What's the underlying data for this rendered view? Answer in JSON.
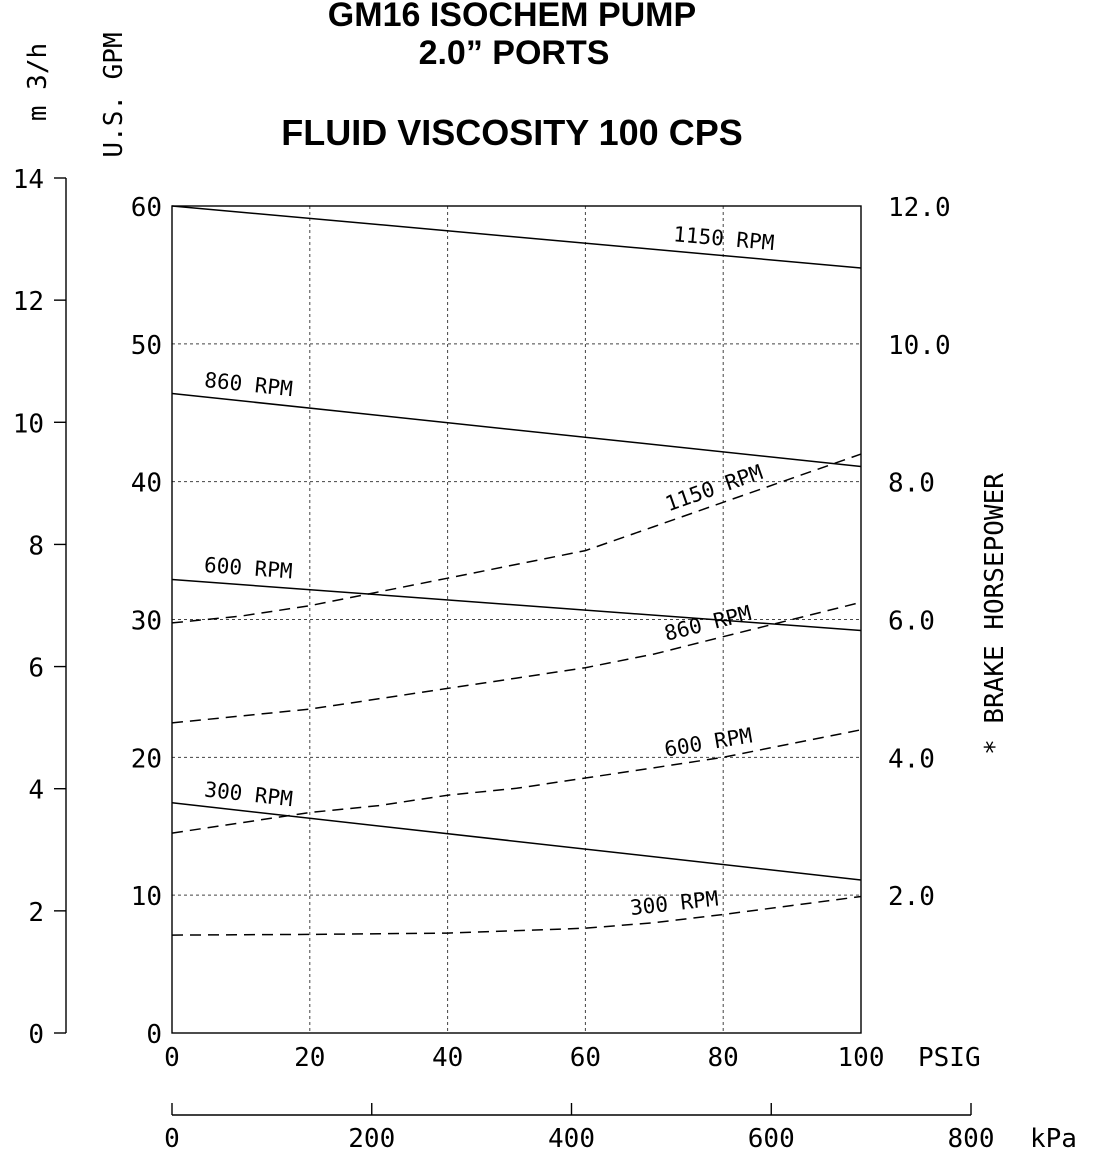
{
  "chart_data": {
    "type": "line",
    "title_lines": [
      "GM16 ISOCHEM PUMP",
      "2.0” PORTS"
    ],
    "subtitle": "FLUID VISCOSITY 100 CPS",
    "x_axis": {
      "unit": "PSIG",
      "range": [
        0,
        100
      ],
      "ticks": [
        0,
        20,
        40,
        60,
        80,
        100
      ],
      "tick_labels": [
        "0",
        "20",
        "40",
        "60",
        "80",
        "100"
      ]
    },
    "x2_axis": {
      "unit": "kPa",
      "range": [
        0,
        800
      ],
      "ticks": [
        0,
        200,
        400,
        600,
        800
      ],
      "tick_labels": [
        "0",
        "200",
        "400",
        "600",
        "800"
      ]
    },
    "y_axis": {
      "label": "U.S. GPM",
      "range": [
        0,
        60
      ],
      "ticks": [
        0,
        10,
        20,
        30,
        40,
        50,
        60
      ],
      "tick_labels": [
        "0",
        "10",
        "20",
        "30",
        "40",
        "50",
        "60"
      ]
    },
    "y_metric_axis": {
      "label": "m 3/h",
      "range": [
        0,
        14
      ],
      "ticks": [
        0,
        2,
        4,
        6,
        8,
        10,
        12,
        14
      ],
      "tick_labels": [
        "0",
        "2",
        "4",
        "6",
        "8",
        "10",
        "12",
        "14"
      ]
    },
    "y2_axis": {
      "label": "* BRAKE HORSEPOWER",
      "range": [
        0,
        12
      ],
      "ticks": [
        2,
        4,
        6,
        8,
        10,
        12
      ],
      "tick_labels": [
        "2.0",
        "4.0",
        "6.0",
        "8.0",
        "10.0",
        "12.0"
      ]
    },
    "grid": true,
    "flow_series": [
      {
        "name": "1150 RPM",
        "axis": "gpm",
        "x": [
          0,
          100
        ],
        "y": [
          60,
          55.5
        ]
      },
      {
        "name": "860 RPM",
        "axis": "gpm",
        "x": [
          0,
          100
        ],
        "y": [
          46.4,
          41.1
        ]
      },
      {
        "name": "600 RPM",
        "axis": "gpm",
        "x": [
          0,
          100
        ],
        "y": [
          32.9,
          29.2
        ]
      },
      {
        "name": "300 RPM",
        "axis": "gpm",
        "x": [
          0,
          100
        ],
        "y": [
          16.7,
          11.1
        ]
      }
    ],
    "horsepower_series": [
      {
        "name": "1150 RPM",
        "axis": "bhp",
        "x": [
          0,
          10,
          20,
          30,
          40,
          50,
          60,
          70,
          80,
          90,
          100
        ],
        "y": [
          5.95,
          6.05,
          6.2,
          6.4,
          6.6,
          6.8,
          7.0,
          7.35,
          7.7,
          8.05,
          8.4
        ]
      },
      {
        "name": "860 RPM",
        "axis": "bhp",
        "x": [
          0,
          10,
          20,
          30,
          40,
          50,
          60,
          70,
          80,
          90,
          100
        ],
        "y": [
          4.5,
          4.6,
          4.7,
          4.85,
          5.0,
          5.15,
          5.3,
          5.5,
          5.75,
          6.0,
          6.25
        ]
      },
      {
        "name": "600 RPM",
        "axis": "bhp",
        "x": [
          0,
          10,
          20,
          30,
          40,
          50,
          60,
          70,
          80,
          90,
          100
        ],
        "y": [
          2.9,
          3.05,
          3.2,
          3.3,
          3.45,
          3.55,
          3.7,
          3.85,
          4.0,
          4.2,
          4.4
        ]
      },
      {
        "name": "300 RPM",
        "axis": "bhp",
        "x": [
          0,
          20,
          40,
          60,
          70,
          80,
          90,
          100
        ],
        "y": [
          1.42,
          1.43,
          1.45,
          1.52,
          1.6,
          1.72,
          1.85,
          1.98
        ]
      }
    ]
  }
}
